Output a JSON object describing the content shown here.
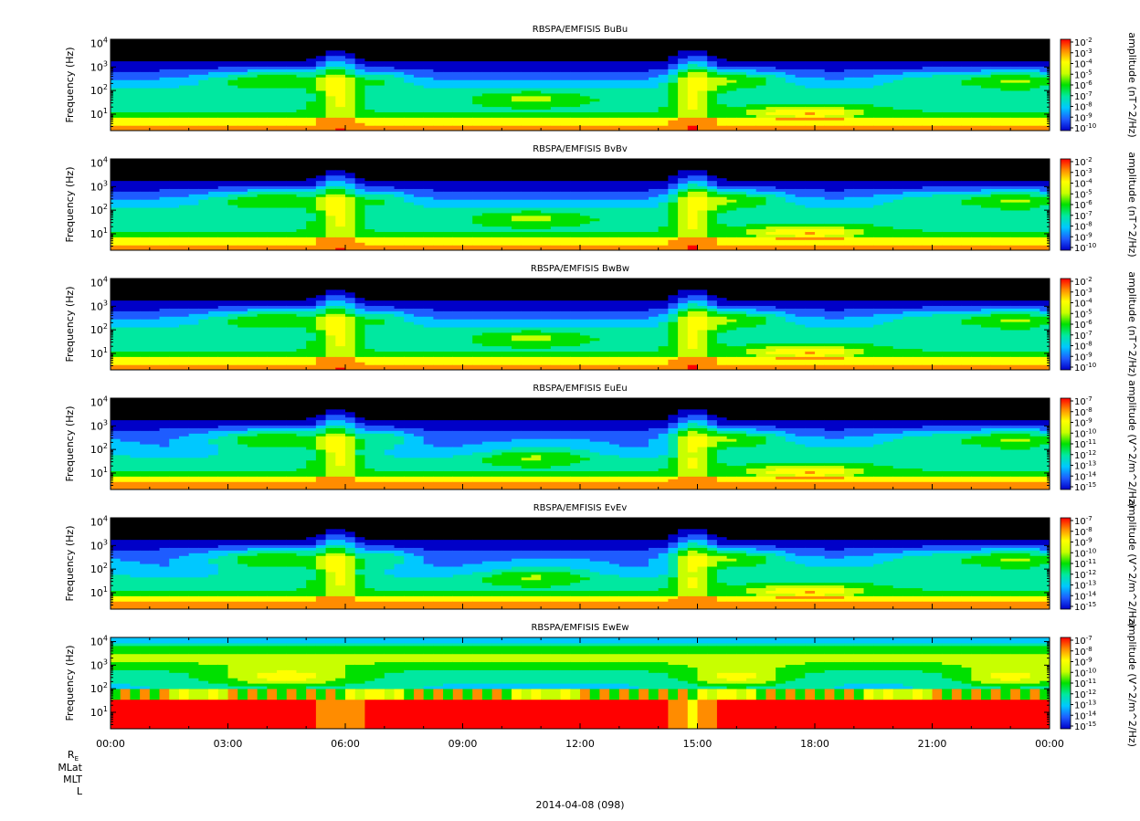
{
  "figure": {
    "xaxis_ticks": [
      "00:00",
      "03:00",
      "06:00",
      "09:00",
      "12:00",
      "15:00",
      "18:00",
      "21:00",
      "00:00"
    ],
    "ephemeris_labels": [
      "R",
      "MLat",
      "MLT",
      "L"
    ],
    "ephemeris_subscript": "E",
    "date_label": "2014-04-08 (098)"
  },
  "chart_data": [
    {
      "type": "heatmap",
      "title": "RBSPA/EMFISIS  BuBu",
      "ylabel": "Frequency (Hz)",
      "yscale": "log",
      "ylim": [
        2,
        15000
      ],
      "y_ticks": [
        {
          "base": "10",
          "exp": "1",
          "value": 10
        },
        {
          "base": "10",
          "exp": "2",
          "value": 100
        },
        {
          "base": "10",
          "exp": "3",
          "value": 1000
        },
        {
          "base": "10",
          "exp": "4",
          "value": 10000
        }
      ],
      "colorbar": {
        "label": "amplitude (nT^2/Hz)",
        "scale": "log",
        "range": [
          1e-10,
          0.01
        ],
        "ticks": [
          {
            "base": "10",
            "exp": "-2"
          },
          {
            "base": "10",
            "exp": "-3"
          },
          {
            "base": "10",
            "exp": "-4"
          },
          {
            "base": "10",
            "exp": "-5"
          },
          {
            "base": "10",
            "exp": "-6"
          },
          {
            "base": "10",
            "exp": "-7"
          },
          {
            "base": "10",
            "exp": "-8"
          },
          {
            "base": "10",
            "exp": "-9"
          },
          {
            "base": "10",
            "exp": "-10"
          }
        ]
      },
      "palette": [
        "#000000",
        "#0000c8",
        "#1e5cff",
        "#00c8ff",
        "#00e8a0",
        "#00e000",
        "#c8ff00",
        "#ffff00",
        "#ff8c00",
        "#ff0000"
      ],
      "profile": "mag"
    },
    {
      "type": "heatmap",
      "title": "RBSPA/EMFISIS  BvBv",
      "ylabel": "Frequency (Hz)",
      "yscale": "log",
      "ylim": [
        2,
        15000
      ],
      "y_ticks": [
        {
          "base": "10",
          "exp": "1",
          "value": 10
        },
        {
          "base": "10",
          "exp": "2",
          "value": 100
        },
        {
          "base": "10",
          "exp": "3",
          "value": 1000
        },
        {
          "base": "10",
          "exp": "4",
          "value": 10000
        }
      ],
      "colorbar": {
        "label": "amplitude (nT^2/Hz)",
        "scale": "log",
        "range": [
          1e-10,
          0.01
        ],
        "ticks": [
          {
            "base": "10",
            "exp": "-2"
          },
          {
            "base": "10",
            "exp": "-3"
          },
          {
            "base": "10",
            "exp": "-4"
          },
          {
            "base": "10",
            "exp": "-5"
          },
          {
            "base": "10",
            "exp": "-6"
          },
          {
            "base": "10",
            "exp": "-7"
          },
          {
            "base": "10",
            "exp": "-8"
          },
          {
            "base": "10",
            "exp": "-9"
          },
          {
            "base": "10",
            "exp": "-10"
          }
        ]
      },
      "palette": [
        "#000000",
        "#0000c8",
        "#1e5cff",
        "#00c8ff",
        "#00e8a0",
        "#00e000",
        "#c8ff00",
        "#ffff00",
        "#ff8c00",
        "#ff0000"
      ],
      "profile": "mag"
    },
    {
      "type": "heatmap",
      "title": "RBSPA/EMFISIS  BwBw",
      "ylabel": "Frequency (Hz)",
      "yscale": "log",
      "ylim": [
        2,
        15000
      ],
      "y_ticks": [
        {
          "base": "10",
          "exp": "1",
          "value": 10
        },
        {
          "base": "10",
          "exp": "2",
          "value": 100
        },
        {
          "base": "10",
          "exp": "3",
          "value": 1000
        },
        {
          "base": "10",
          "exp": "4",
          "value": 10000
        }
      ],
      "colorbar": {
        "label": "amplitude (nT^2/Hz)",
        "scale": "log",
        "range": [
          1e-10,
          0.01
        ],
        "ticks": [
          {
            "base": "10",
            "exp": "-2"
          },
          {
            "base": "10",
            "exp": "-3"
          },
          {
            "base": "10",
            "exp": "-4"
          },
          {
            "base": "10",
            "exp": "-5"
          },
          {
            "base": "10",
            "exp": "-6"
          },
          {
            "base": "10",
            "exp": "-7"
          },
          {
            "base": "10",
            "exp": "-8"
          },
          {
            "base": "10",
            "exp": "-9"
          },
          {
            "base": "10",
            "exp": "-10"
          }
        ]
      },
      "palette": [
        "#000000",
        "#0000c8",
        "#1e5cff",
        "#00c8ff",
        "#00e8a0",
        "#00e000",
        "#c8ff00",
        "#ffff00",
        "#ff8c00",
        "#ff0000"
      ],
      "profile": "mag"
    },
    {
      "type": "heatmap",
      "title": "RBSPA/EMFISIS  EuEu",
      "ylabel": "Frequency (Hz)",
      "yscale": "log",
      "ylim": [
        2,
        15000
      ],
      "y_ticks": [
        {
          "base": "10",
          "exp": "1",
          "value": 10
        },
        {
          "base": "10",
          "exp": "2",
          "value": 100
        },
        {
          "base": "10",
          "exp": "3",
          "value": 1000
        },
        {
          "base": "10",
          "exp": "4",
          "value": 10000
        }
      ],
      "colorbar": {
        "label": "amplitude (V^2/m^2/Hz)",
        "scale": "log",
        "range": [
          1e-15,
          1e-07
        ],
        "ticks": [
          {
            "base": "10",
            "exp": "-7"
          },
          {
            "base": "10",
            "exp": "-8"
          },
          {
            "base": "10",
            "exp": "-9"
          },
          {
            "base": "10",
            "exp": "-10"
          },
          {
            "base": "10",
            "exp": "-11"
          },
          {
            "base": "10",
            "exp": "-12"
          },
          {
            "base": "10",
            "exp": "-13"
          },
          {
            "base": "10",
            "exp": "-14"
          },
          {
            "base": "10",
            "exp": "-15"
          }
        ]
      },
      "palette": [
        "#000000",
        "#0000c8",
        "#1e5cff",
        "#00c8ff",
        "#00e8a0",
        "#00e000",
        "#c8ff00",
        "#ffff00",
        "#ff8c00",
        "#ff0000"
      ],
      "profile": "elec"
    },
    {
      "type": "heatmap",
      "title": "RBSPA/EMFISIS  EvEv",
      "ylabel": "Frequency (Hz)",
      "yscale": "log",
      "ylim": [
        2,
        15000
      ],
      "y_ticks": [
        {
          "base": "10",
          "exp": "1",
          "value": 10
        },
        {
          "base": "10",
          "exp": "2",
          "value": 100
        },
        {
          "base": "10",
          "exp": "3",
          "value": 1000
        },
        {
          "base": "10",
          "exp": "4",
          "value": 10000
        }
      ],
      "colorbar": {
        "label": "amplitude (V^2/m^2/Hz)",
        "scale": "log",
        "range": [
          1e-15,
          1e-07
        ],
        "ticks": [
          {
            "base": "10",
            "exp": "-7"
          },
          {
            "base": "10",
            "exp": "-8"
          },
          {
            "base": "10",
            "exp": "-9"
          },
          {
            "base": "10",
            "exp": "-10"
          },
          {
            "base": "10",
            "exp": "-11"
          },
          {
            "base": "10",
            "exp": "-12"
          },
          {
            "base": "10",
            "exp": "-13"
          },
          {
            "base": "10",
            "exp": "-14"
          },
          {
            "base": "10",
            "exp": "-15"
          }
        ]
      },
      "palette": [
        "#000000",
        "#0000c8",
        "#1e5cff",
        "#00c8ff",
        "#00e8a0",
        "#00e000",
        "#c8ff00",
        "#ffff00",
        "#ff8c00",
        "#ff0000"
      ],
      "profile": "elec"
    },
    {
      "type": "heatmap",
      "title": "RBSPA/EMFISIS  EwEw",
      "ylabel": "Frequency (Hz)",
      "yscale": "log",
      "ylim": [
        2,
        15000
      ],
      "y_ticks": [
        {
          "base": "10",
          "exp": "1",
          "value": 10
        },
        {
          "base": "10",
          "exp": "2",
          "value": 100
        },
        {
          "base": "10",
          "exp": "3",
          "value": 1000
        },
        {
          "base": "10",
          "exp": "4",
          "value": 10000
        }
      ],
      "colorbar": {
        "label": "amplitude (V^2/m^2/Hz)",
        "scale": "log",
        "range": [
          1e-15,
          1e-07
        ],
        "ticks": [
          {
            "base": "10",
            "exp": "-7"
          },
          {
            "base": "10",
            "exp": "-8"
          },
          {
            "base": "10",
            "exp": "-9"
          },
          {
            "base": "10",
            "exp": "-10"
          },
          {
            "base": "10",
            "exp": "-11"
          },
          {
            "base": "10",
            "exp": "-12"
          },
          {
            "base": "10",
            "exp": "-13"
          },
          {
            "base": "10",
            "exp": "-14"
          },
          {
            "base": "10",
            "exp": "-15"
          }
        ]
      },
      "palette": [
        "#000000",
        "#0000c8",
        "#1e5cff",
        "#00c8ff",
        "#00e8a0",
        "#00e000",
        "#c8ff00",
        "#ffff00",
        "#ff8c00",
        "#ff0000"
      ],
      "profile": "ew"
    }
  ]
}
